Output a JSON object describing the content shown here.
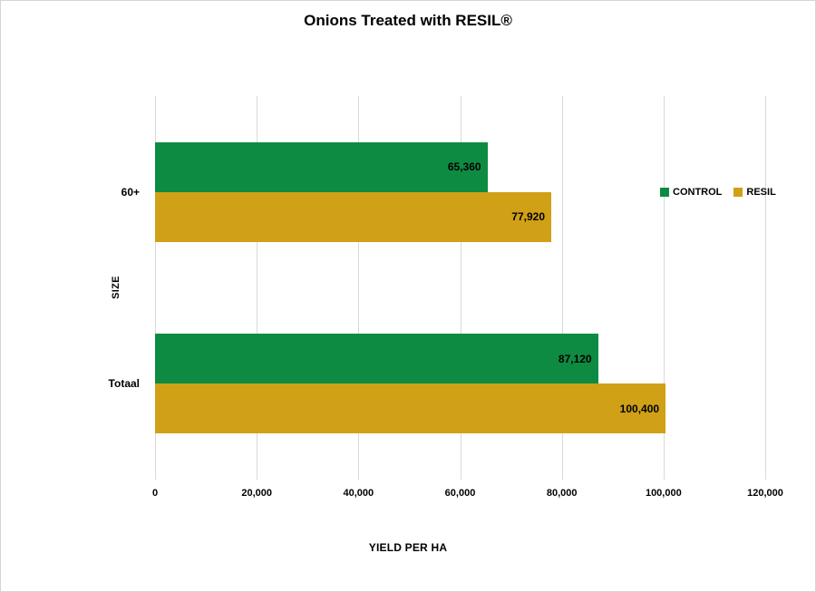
{
  "window": {
    "background": "#ffffff",
    "border_color": "#d2d5d8"
  },
  "chart_data": {
    "type": "bar",
    "orientation": "horizontal",
    "title": "Onions Treated with RESIL®",
    "xlabel": "YIELD PER HA",
    "ylabel": "SIZE",
    "categories": [
      "60+",
      "Totaal"
    ],
    "series": [
      {
        "name": "CONTROL",
        "color": "#0e8b42",
        "values": [
          65360,
          87120
        ],
        "labels": [
          "65,360",
          "87,120"
        ]
      },
      {
        "name": "RESIL",
        "color": "#d0a017",
        "values": [
          77920,
          100400
        ],
        "labels": [
          "77,920",
          "100,400"
        ]
      }
    ],
    "xlim": [
      0,
      120000
    ],
    "xticks": [
      0,
      20000,
      40000,
      60000,
      80000,
      100000,
      120000
    ],
    "xtick_labels": [
      "0",
      "20,000",
      "40,000",
      "60,000",
      "80,000",
      "100,000",
      "120,000"
    ],
    "grid": "vertical",
    "gridline_color": "#d9d9d9",
    "legend_position": "right-inside",
    "data_label_position": "inside-end",
    "text_color": "#000000"
  }
}
